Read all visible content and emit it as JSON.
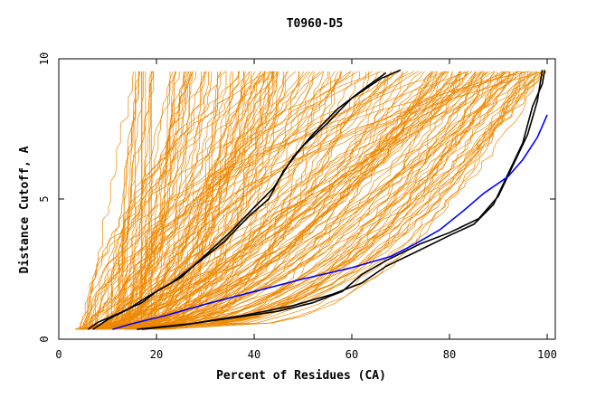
{
  "chart_data": {
    "type": "line",
    "title": "T0960-D5",
    "xlabel": "Percent of Residues (CA)",
    "ylabel": "Distance Cutoff, A",
    "xlim": [
      0,
      100
    ],
    "ylim": [
      0,
      10
    ],
    "x_ticks": [
      "0",
      "20",
      "40",
      "60",
      "80",
      "100"
    ],
    "y_ticks": [
      "0",
      "5",
      "10"
    ],
    "grid": false,
    "legend": "none",
    "colors": {
      "models": "#ee8800",
      "highlight_black": "#000000",
      "highlight_blue": "#0000ff"
    },
    "highlight_series": [
      {
        "color": "#000000",
        "points": [
          [
            6,
            0.35
          ],
          [
            8,
            0.6
          ],
          [
            12,
            0.9
          ],
          [
            17,
            1.3
          ],
          [
            20,
            1.7
          ],
          [
            25,
            2.2
          ],
          [
            30,
            3.0
          ],
          [
            35,
            3.8
          ],
          [
            40,
            4.7
          ],
          [
            44,
            5.4
          ],
          [
            48,
            6.5
          ],
          [
            52,
            7.3
          ],
          [
            57,
            8.2
          ],
          [
            63,
            9.0
          ],
          [
            67,
            9.5
          ]
        ]
      },
      {
        "color": "#000000",
        "points": [
          [
            7,
            0.35
          ],
          [
            10,
            0.7
          ],
          [
            14,
            1.05
          ],
          [
            18,
            1.5
          ],
          [
            23,
            2.0
          ],
          [
            29,
            2.8
          ],
          [
            34,
            3.5
          ],
          [
            39,
            4.4
          ],
          [
            43,
            5.0
          ],
          [
            46,
            6.0
          ],
          [
            50,
            6.9
          ],
          [
            55,
            7.7
          ],
          [
            60,
            8.6
          ],
          [
            66,
            9.3
          ],
          [
            70,
            9.6
          ]
        ]
      },
      {
        "color": "#000000",
        "points": [
          [
            17,
            0.35
          ],
          [
            25,
            0.5
          ],
          [
            35,
            0.75
          ],
          [
            45,
            1.0
          ],
          [
            52,
            1.3
          ],
          [
            58,
            1.7
          ],
          [
            62,
            2.3
          ],
          [
            67,
            2.8
          ],
          [
            74,
            3.4
          ],
          [
            80,
            3.8
          ],
          [
            86,
            4.3
          ],
          [
            90,
            5.1
          ],
          [
            93,
            6.2
          ],
          [
            96,
            7.3
          ],
          [
            98,
            8.5
          ],
          [
            99,
            9.6
          ]
        ]
      },
      {
        "color": "#000000",
        "points": [
          [
            16,
            0.35
          ],
          [
            27,
            0.55
          ],
          [
            38,
            0.85
          ],
          [
            48,
            1.2
          ],
          [
            56,
            1.6
          ],
          [
            62,
            2.0
          ],
          [
            67,
            2.6
          ],
          [
            73,
            3.1
          ],
          [
            80,
            3.7
          ],
          [
            85,
            4.1
          ],
          [
            89,
            4.8
          ],
          [
            92,
            5.9
          ],
          [
            95,
            7.0
          ],
          [
            97,
            8.3
          ],
          [
            99,
            9.1
          ],
          [
            99.5,
            9.6
          ]
        ]
      },
      {
        "color": "#0000ff",
        "points": [
          [
            11,
            0.35
          ],
          [
            15,
            0.55
          ],
          [
            22,
            0.85
          ],
          [
            30,
            1.25
          ],
          [
            40,
            1.7
          ],
          [
            50,
            2.15
          ],
          [
            60,
            2.55
          ],
          [
            68,
            2.95
          ],
          [
            73,
            3.4
          ],
          [
            78,
            3.9
          ],
          [
            83,
            4.6
          ],
          [
            87,
            5.2
          ],
          [
            92,
            5.8
          ],
          [
            95,
            6.4
          ],
          [
            98,
            7.2
          ],
          [
            100,
            8.0
          ]
        ]
      }
    ]
  }
}
